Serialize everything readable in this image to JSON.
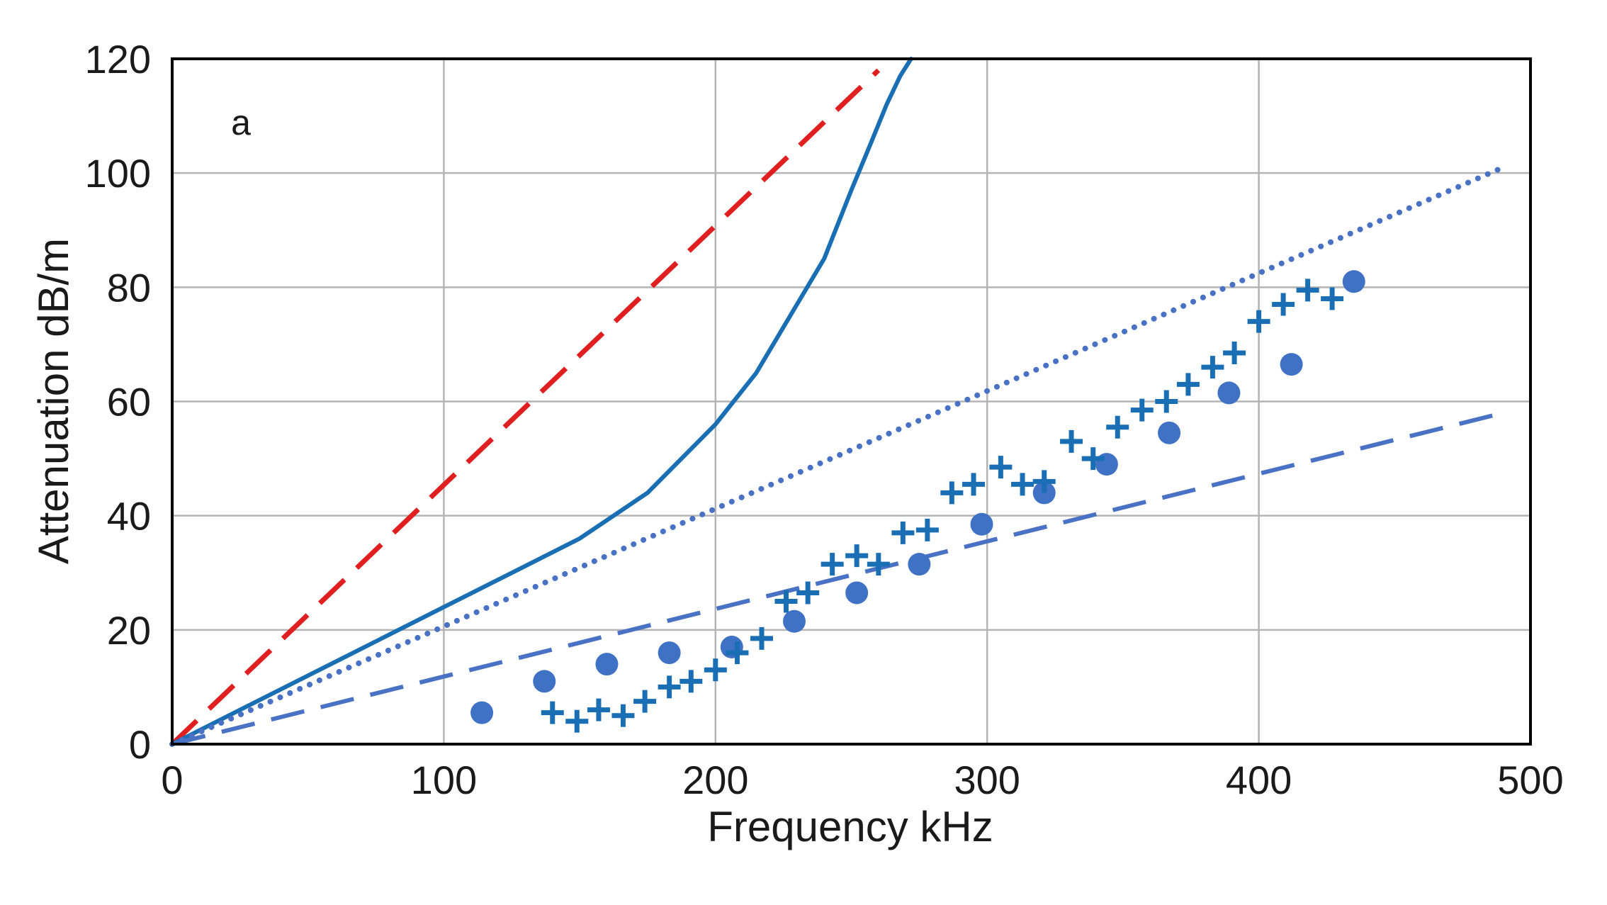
{
  "chart_data": {
    "type": "scatter",
    "panel_label": "a",
    "title": "",
    "xlabel": "Frequency  kHz",
    "ylabel": "Attenuation  dB/m",
    "xlim": [
      0,
      500
    ],
    "ylim": [
      0,
      120
    ],
    "xticks": [
      0,
      100,
      200,
      300,
      400,
      500
    ],
    "yticks": [
      0,
      20,
      40,
      60,
      80,
      100,
      120
    ],
    "grid": true,
    "legend": "none",
    "colors": {
      "red_dashed": "#e02020",
      "solid_blue": "#1a6fb4",
      "dotted_blue": "#4a72c4",
      "dashed_blue": "#4a72c4",
      "dots": "#3f72c4",
      "crosses": "#1a6fb4",
      "grid": "#b4b4b4",
      "axes": "#000000"
    },
    "series": [
      {
        "name": "red-dashed-line",
        "style": "dashed",
        "x": [
          0,
          260
        ],
        "y": [
          0,
          118
        ]
      },
      {
        "name": "solid-blue-curve",
        "style": "solid",
        "x": [
          0,
          25,
          50,
          75,
          100,
          125,
          150,
          175,
          200,
          215,
          230,
          240,
          250,
          257,
          263,
          268,
          272
        ],
        "y": [
          0,
          6,
          12,
          18,
          24,
          30,
          36,
          44,
          56,
          65,
          77,
          85,
          97,
          105,
          112,
          117,
          120
        ]
      },
      {
        "name": "dotted-blue-line",
        "style": "dotted",
        "x": [
          0,
          490
        ],
        "y": [
          0,
          101
        ]
      },
      {
        "name": "dashed-blue-line",
        "style": "dashed",
        "x": [
          0,
          490
        ],
        "y": [
          0,
          58
        ]
      },
      {
        "name": "circle-markers",
        "style": "markers-circle",
        "x": [
          114,
          137,
          160,
          183,
          206,
          229,
          252,
          275,
          298,
          321,
          344,
          367,
          389,
          412,
          435
        ],
        "y": [
          5.5,
          11,
          14,
          16,
          17,
          21.5,
          26.5,
          31.5,
          38.5,
          44,
          49,
          54.5,
          61.5,
          66.5,
          81
        ]
      },
      {
        "name": "cross-markers",
        "style": "markers-cross",
        "x": [
          140,
          149,
          157,
          166,
          174,
          183,
          191,
          200,
          208,
          217,
          226,
          234,
          243,
          252,
          260,
          269,
          278,
          287,
          295,
          305,
          313,
          321,
          331,
          339,
          348,
          357,
          366,
          374,
          383,
          391,
          400,
          409,
          418,
          427
        ],
        "y": [
          5.5,
          4,
          6,
          5,
          7.5,
          10,
          11,
          13,
          16,
          18.5,
          25,
          26.5,
          31.5,
          33,
          31.5,
          37,
          37.5,
          44,
          45.5,
          48.5,
          45.5,
          46,
          53,
          50,
          55.5,
          58.5,
          60,
          63,
          66,
          68.5,
          74,
          77,
          79.5,
          78
        ]
      }
    ]
  }
}
